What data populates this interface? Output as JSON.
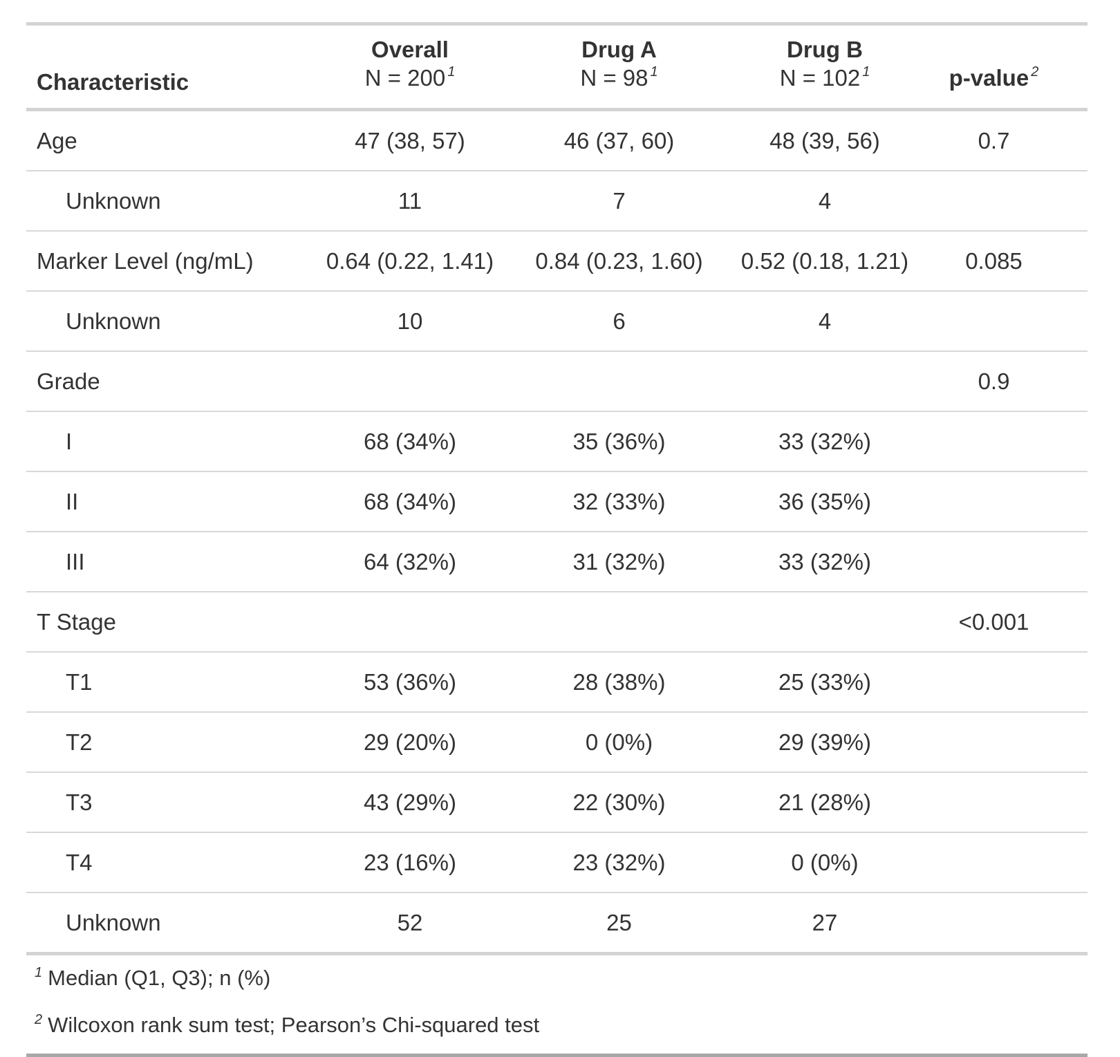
{
  "style": {
    "background": "#ffffff",
    "text_color": "#333333",
    "border_light": "#d3d3d3",
    "border_row": "#d8d8d8",
    "border_bottom_dark": "#a8a8a8"
  },
  "chart_data": {
    "type": "table",
    "title": "",
    "columns": [
      {
        "id": "label",
        "label": "Characteristic",
        "sublabel": null,
        "footnote_mark": null,
        "align": "left"
      },
      {
        "id": "overall",
        "label": "Overall",
        "sublabel": "N = 200",
        "footnote_mark": "1",
        "align": "center"
      },
      {
        "id": "drug_a",
        "label": "Drug A",
        "sublabel": "N = 98",
        "footnote_mark": "1",
        "align": "center"
      },
      {
        "id": "drug_b",
        "label": "Drug B",
        "sublabel": "N = 102",
        "footnote_mark": "1",
        "align": "center"
      },
      {
        "id": "p_value",
        "label": "p-value",
        "sublabel": null,
        "footnote_mark": "2",
        "align": "center"
      }
    ],
    "rows": [
      {
        "label": "Age",
        "indent": false,
        "overall": "47 (38, 57)",
        "drug_a": "46 (37, 60)",
        "drug_b": "48 (39, 56)",
        "p_value": "0.7"
      },
      {
        "label": "Unknown",
        "indent": true,
        "overall": "11",
        "drug_a": "7",
        "drug_b": "4",
        "p_value": ""
      },
      {
        "label": "Marker Level (ng/mL)",
        "indent": false,
        "overall": "0.64 (0.22, 1.41)",
        "drug_a": "0.84 (0.23, 1.60)",
        "drug_b": "0.52 (0.18, 1.21)",
        "p_value": "0.085"
      },
      {
        "label": "Unknown",
        "indent": true,
        "overall": "10",
        "drug_a": "6",
        "drug_b": "4",
        "p_value": ""
      },
      {
        "label": "Grade",
        "indent": false,
        "overall": "",
        "drug_a": "",
        "drug_b": "",
        "p_value": "0.9"
      },
      {
        "label": "I",
        "indent": true,
        "overall": "68 (34%)",
        "drug_a": "35 (36%)",
        "drug_b": "33 (32%)",
        "p_value": ""
      },
      {
        "label": "II",
        "indent": true,
        "overall": "68 (34%)",
        "drug_a": "32 (33%)",
        "drug_b": "36 (35%)",
        "p_value": ""
      },
      {
        "label": "III",
        "indent": true,
        "overall": "64 (32%)",
        "drug_a": "31 (32%)",
        "drug_b": "33 (32%)",
        "p_value": ""
      },
      {
        "label": "T Stage",
        "indent": false,
        "overall": "",
        "drug_a": "",
        "drug_b": "",
        "p_value": "<0.001"
      },
      {
        "label": "T1",
        "indent": true,
        "overall": "53 (36%)",
        "drug_a": "28 (38%)",
        "drug_b": "25 (33%)",
        "p_value": ""
      },
      {
        "label": "T2",
        "indent": true,
        "overall": "29 (20%)",
        "drug_a": "0 (0%)",
        "drug_b": "29 (39%)",
        "p_value": ""
      },
      {
        "label": "T3",
        "indent": true,
        "overall": "43 (29%)",
        "drug_a": "22 (30%)",
        "drug_b": "21 (28%)",
        "p_value": ""
      },
      {
        "label": "T4",
        "indent": true,
        "overall": "23 (16%)",
        "drug_a": "23 (32%)",
        "drug_b": "0 (0%)",
        "p_value": ""
      },
      {
        "label": "Unknown",
        "indent": true,
        "overall": "52",
        "drug_a": "25",
        "drug_b": "27",
        "p_value": ""
      }
    ],
    "footnotes": [
      {
        "mark": "1",
        "text": "Median (Q1, Q3); n (%)"
      },
      {
        "mark": "2",
        "text": "Wilcoxon rank sum test; Pearson’s Chi-squared test"
      }
    ]
  }
}
